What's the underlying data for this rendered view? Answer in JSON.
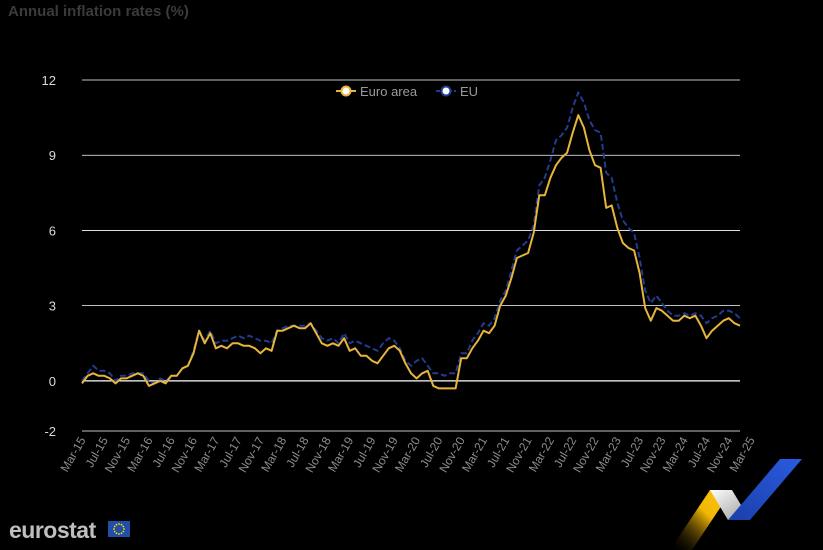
{
  "title": "Annual inflation rates (%)",
  "brand": {
    "name": "eurostat"
  },
  "colors": {
    "euro_area": "#e6b53a",
    "eu": "#223a8f",
    "background": "#000000",
    "grid": "#ffffff"
  },
  "chart_data": {
    "type": "line",
    "y_ticks": [
      -2,
      0,
      3,
      6,
      9,
      12
    ],
    "ylim": [
      -2,
      12
    ],
    "legend_position": "top-center",
    "grid": true,
    "x_tick_labels": [
      "Mar-15",
      "Jul-15",
      "Nov-15",
      "Mar-16",
      "Jul-16",
      "Nov-16",
      "Mar-17",
      "Jul-17",
      "Nov-17",
      "Mar-18",
      "Jul-18",
      "Nov-18",
      "Mar-19",
      "Jul-19",
      "Nov-19",
      "Mar-20",
      "Jul-20",
      "Nov-20",
      "Mar-21",
      "Jul-21",
      "Nov-21",
      "Mar-22",
      "Jul-22",
      "Nov-22",
      "Mar-23",
      "Jul-23",
      "Nov-23",
      "Mar-24",
      "Jul-24",
      "Nov-24",
      "Mar-25"
    ],
    "series": [
      {
        "name": "Euro area",
        "values": [
          -0.1,
          0.2,
          0.3,
          0.2,
          0.2,
          0.1,
          -0.1,
          0.1,
          0.1,
          0.2,
          0.3,
          0.2,
          -0.2,
          -0.1,
          0.0,
          -0.1,
          0.2,
          0.2,
          0.5,
          0.6,
          1.1,
          2.0,
          1.5,
          1.9,
          1.3,
          1.4,
          1.3,
          1.5,
          1.5,
          1.4,
          1.4,
          1.3,
          1.1,
          1.3,
          1.2,
          2.0,
          2.0,
          2.1,
          2.2,
          2.1,
          2.1,
          2.3,
          1.9,
          1.5,
          1.4,
          1.5,
          1.4,
          1.7,
          1.2,
          1.3,
          1.0,
          1.0,
          0.8,
          0.7,
          1.0,
          1.3,
          1.4,
          1.2,
          0.7,
          0.3,
          0.1,
          0.3,
          0.4,
          -0.2,
          -0.3,
          -0.3,
          -0.3,
          -0.3,
          0.9,
          0.9,
          1.3,
          1.6,
          2.0,
          1.9,
          2.2,
          3.0,
          3.4,
          4.1,
          4.9,
          5.0,
          5.1,
          5.9,
          7.4,
          7.4,
          8.1,
          8.6,
          8.9,
          9.1,
          9.9,
          10.6,
          10.1,
          9.2,
          8.6,
          8.5,
          6.9,
          7.0,
          6.1,
          5.5,
          5.3,
          5.2,
          4.3,
          2.9,
          2.4,
          2.9,
          2.8,
          2.6,
          2.4,
          2.4,
          2.6,
          2.5,
          2.6,
          2.2,
          1.7,
          2.0,
          2.2,
          2.4,
          2.5,
          2.3,
          2.2
        ],
        "color": "#e6b53a"
      },
      {
        "name": "EU",
        "values": [
          0.0,
          0.3,
          0.6,
          0.4,
          0.4,
          0.3,
          0.0,
          0.2,
          0.2,
          0.3,
          0.3,
          0.3,
          0.0,
          -0.1,
          0.1,
          0.0,
          0.2,
          0.2,
          0.5,
          0.6,
          1.2,
          2.0,
          1.6,
          2.0,
          1.5,
          1.6,
          1.6,
          1.7,
          1.8,
          1.7,
          1.8,
          1.7,
          1.6,
          1.6,
          1.5,
          2.0,
          2.1,
          2.2,
          2.2,
          2.2,
          2.2,
          2.3,
          2.0,
          1.7,
          1.6,
          1.7,
          1.5,
          1.9,
          1.5,
          1.6,
          1.5,
          1.4,
          1.3,
          1.2,
          1.5,
          1.7,
          1.6,
          1.3,
          0.8,
          0.6,
          0.8,
          0.9,
          0.6,
          0.3,
          0.3,
          0.2,
          0.3,
          0.3,
          1.1,
          1.1,
          1.6,
          1.9,
          2.3,
          2.2,
          2.5,
          3.2,
          3.6,
          4.4,
          5.2,
          5.4,
          5.6,
          6.2,
          7.8,
          8.1,
          8.8,
          9.6,
          9.8,
          10.1,
          10.9,
          11.5,
          11.1,
          10.4,
          10.0,
          9.9,
          8.3,
          8.1,
          7.1,
          6.4,
          6.1,
          5.9,
          4.9,
          3.6,
          3.1,
          3.4,
          3.1,
          2.8,
          2.6,
          2.6,
          2.7,
          2.6,
          2.7,
          2.6,
          2.3,
          2.5,
          2.6,
          2.8,
          2.8,
          2.7,
          2.5
        ]
      }
    ]
  }
}
